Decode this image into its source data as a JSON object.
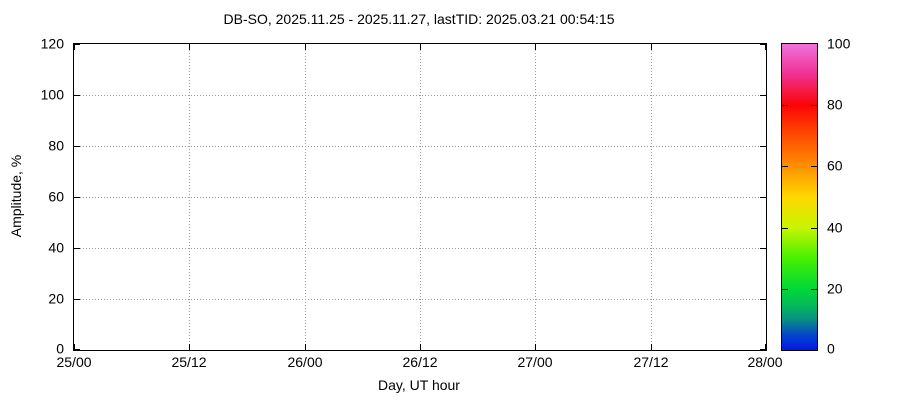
{
  "window": {
    "background": "#ffffff"
  },
  "chart_data": {
    "type": "heatmap",
    "title": "DB-SO, 2025.11.25 - 2025.11.27, lastTID: 2025.03.21 00:54:15",
    "xlabel": "Day, UT hour",
    "ylabel": "Amplitude, %",
    "x_ticks": [
      "25/00",
      "25/12",
      "26/00",
      "26/12",
      "27/00",
      "27/12",
      "28/00"
    ],
    "y_ticks": [
      "0",
      "20",
      "40",
      "60",
      "80",
      "100",
      "120"
    ],
    "ylim": [
      0,
      120
    ],
    "grid": true,
    "grid_color": "#9a9a9a",
    "axis_color": "#000000",
    "legend_position": "none",
    "points": [],
    "colorbar": {
      "min": 0,
      "max": 100,
      "ticks": [
        "0",
        "20",
        "40",
        "60",
        "80",
        "100"
      ],
      "gradient_stops": [
        {
          "pos": 0.0,
          "color": "#0018e8"
        },
        {
          "pos": 0.05,
          "color": "#0545cc"
        },
        {
          "pos": 0.1,
          "color": "#089080"
        },
        {
          "pos": 0.15,
          "color": "#04bc58"
        },
        {
          "pos": 0.2,
          "color": "#00d838"
        },
        {
          "pos": 0.3,
          "color": "#48f000"
        },
        {
          "pos": 0.4,
          "color": "#c8f400"
        },
        {
          "pos": 0.5,
          "color": "#ffd800"
        },
        {
          "pos": 0.6,
          "color": "#ff9000"
        },
        {
          "pos": 0.7,
          "color": "#ff4c00"
        },
        {
          "pos": 0.8,
          "color": "#fb0505"
        },
        {
          "pos": 0.9,
          "color": "#f03090"
        },
        {
          "pos": 1.0,
          "color": "#ee72dc"
        }
      ]
    }
  }
}
